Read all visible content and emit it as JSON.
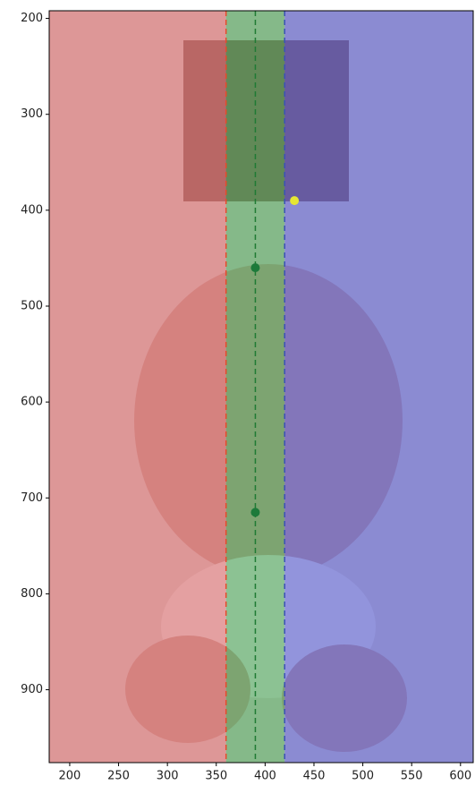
{
  "chart_data": {
    "type": "image-overlay",
    "xlim": [
      179,
      613
    ],
    "ylim": [
      976,
      192
    ],
    "xticks": [
      200,
      250,
      300,
      350,
      400,
      450,
      500,
      550,
      600
    ],
    "yticks": [
      200,
      300,
      400,
      500,
      600,
      700,
      800,
      900
    ],
    "spans": [
      {
        "xmax": 360,
        "color": "#e06464"
      },
      {
        "xmin": 360,
        "xmax": 420,
        "color": "#3fa34a"
      },
      {
        "xmin": 420,
        "color": "#4a4fcf"
      }
    ],
    "vlines": [
      {
        "x": 360,
        "color": "#e8492c"
      },
      {
        "x": 390,
        "color": "#1f7a33"
      },
      {
        "x": 420,
        "color": "#3a4fb8"
      }
    ],
    "points": [
      {
        "x": 390,
        "y": 460,
        "color": "#1d7a3a"
      },
      {
        "x": 390,
        "y": 715,
        "color": "#1d7a3a"
      },
      {
        "x": 430,
        "y": 390,
        "color": "#e6e633"
      }
    ]
  }
}
